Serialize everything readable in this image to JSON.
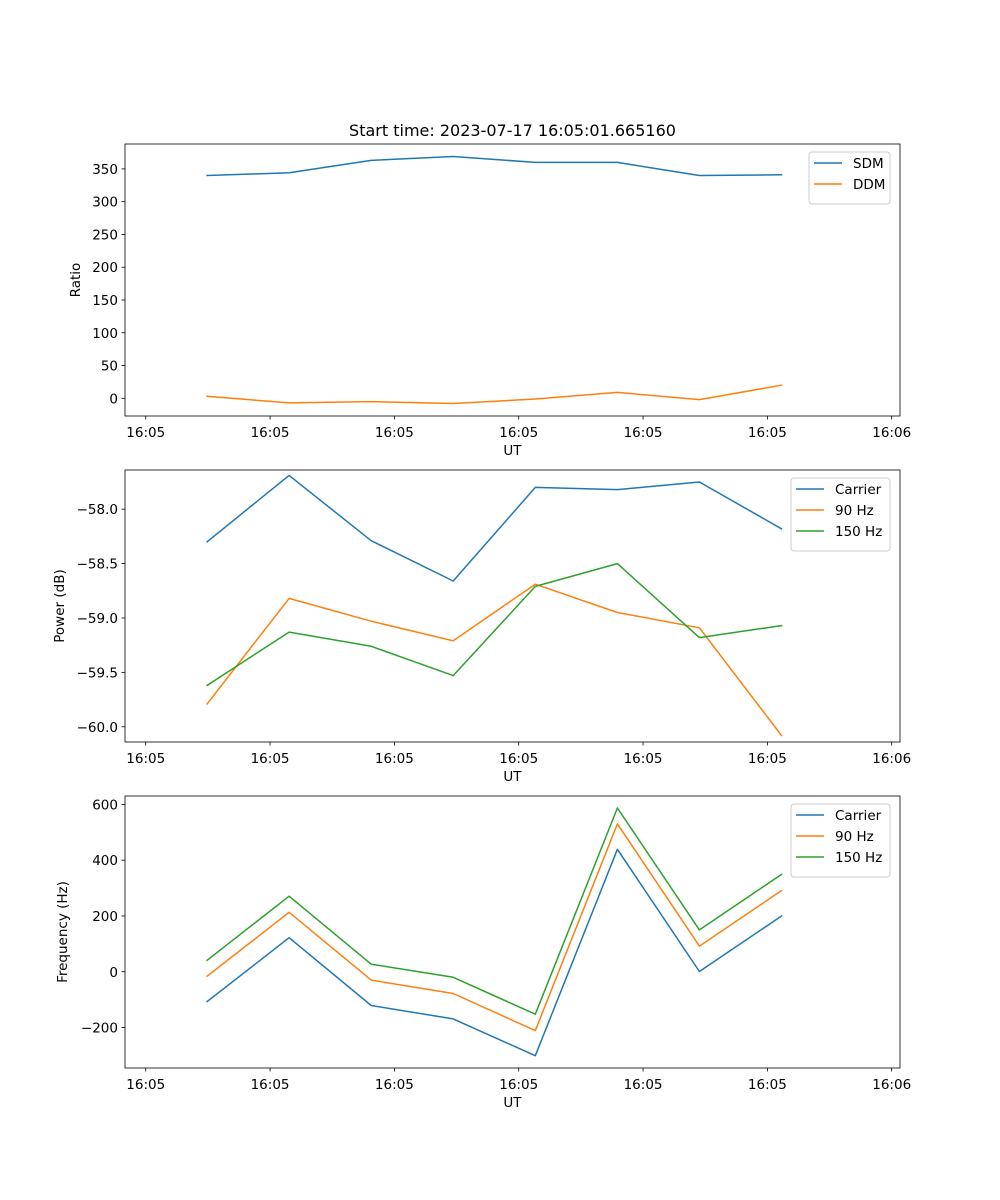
{
  "chart_data": [
    {
      "type": "line",
      "title": "Start time: 2023-07-17 16:05:01.665160",
      "xlabel": "UT",
      "ylabel": "Ratio",
      "xlim": [
        -0.25,
        9.1
      ],
      "ylim": [
        -27,
        388
      ],
      "x_ticks": [
        0,
        1.5,
        3,
        4.5,
        6,
        7.5,
        9
      ],
      "x_tick_labels": [
        "16:05",
        "16:05",
        "16:05",
        "16:05",
        "16:05",
        "16:05",
        "16:06"
      ],
      "y_ticks": [
        0,
        50,
        100,
        150,
        200,
        250,
        300,
        350
      ],
      "y_tick_labels": [
        "0",
        "50",
        "100",
        "150",
        "200",
        "250",
        "300",
        "350"
      ],
      "x": [
        0.74,
        1.73,
        2.72,
        3.71,
        4.7,
        5.69,
        6.68,
        7.67
      ],
      "series": [
        {
          "name": "SDM",
          "color": "#1f77b4",
          "values": [
            340,
            344,
            363,
            369,
            360,
            360,
            340,
            341
          ]
        },
        {
          "name": "DDM",
          "color": "#ff7f0e",
          "values": [
            3,
            -7,
            -5,
            -8,
            -1,
            9,
            -2,
            20
          ]
        }
      ],
      "legend": "top-right"
    },
    {
      "type": "line",
      "title": "",
      "xlabel": "UT",
      "ylabel": "Power (dB)",
      "xlim": [
        -0.25,
        9.1
      ],
      "ylim": [
        -60.14,
        -57.64
      ],
      "x_ticks": [
        0,
        1.5,
        3,
        4.5,
        6,
        7.5,
        9
      ],
      "x_tick_labels": [
        "16:05",
        "16:05",
        "16:05",
        "16:05",
        "16:05",
        "16:05",
        "16:06"
      ],
      "y_ticks": [
        -60.0,
        -59.5,
        -59.0,
        -58.5,
        -58.0
      ],
      "y_tick_labels": [
        "−60.0",
        "−59.5",
        "−59.0",
        "−58.5",
        "−58.0"
      ],
      "x": [
        0.74,
        1.73,
        2.72,
        3.71,
        4.7,
        5.69,
        6.68,
        7.67
      ],
      "series": [
        {
          "name": "Carrier",
          "color": "#1f77b4",
          "values": [
            -58.3,
            -57.69,
            -58.29,
            -58.66,
            -57.8,
            -57.82,
            -57.75,
            -58.18
          ]
        },
        {
          "name": "90 Hz",
          "color": "#ff7f0e",
          "values": [
            -59.79,
            -58.82,
            -59.03,
            -59.21,
            -58.69,
            -58.95,
            -59.09,
            -60.08
          ]
        },
        {
          "name": "150 Hz",
          "color": "#2ca02c",
          "values": [
            -59.62,
            -59.13,
            -59.26,
            -59.53,
            -58.71,
            -58.5,
            -59.18,
            -59.07
          ]
        }
      ],
      "legend": "top-right"
    },
    {
      "type": "line",
      "title": "",
      "xlabel": "UT",
      "ylabel": "Frequency (Hz)",
      "xlim": [
        -0.25,
        9.1
      ],
      "ylim": [
        -345,
        630
      ],
      "x_ticks": [
        0,
        1.5,
        3,
        4.5,
        6,
        7.5,
        9
      ],
      "x_tick_labels": [
        "16:05",
        "16:05",
        "16:05",
        "16:05",
        "16:05",
        "16:05",
        "16:06"
      ],
      "y_ticks": [
        -200,
        0,
        200,
        400,
        600
      ],
      "y_tick_labels": [
        "−200",
        "0",
        "200",
        "400",
        "600"
      ],
      "x": [
        0.74,
        1.73,
        2.72,
        3.71,
        4.7,
        5.69,
        6.68,
        7.67
      ],
      "series": [
        {
          "name": "Carrier",
          "color": "#1f77b4",
          "values": [
            -107,
            122,
            -121,
            -169,
            -301,
            439,
            1,
            200
          ]
        },
        {
          "name": "90 Hz",
          "color": "#ff7f0e",
          "values": [
            -16,
            213,
            -30,
            -78,
            -211,
            530,
            92,
            291
          ]
        },
        {
          "name": "150 Hz",
          "color": "#2ca02c",
          "values": [
            41,
            271,
            27,
            -20,
            -152,
            587,
            150,
            349
          ]
        }
      ],
      "legend": "top-right"
    }
  ]
}
